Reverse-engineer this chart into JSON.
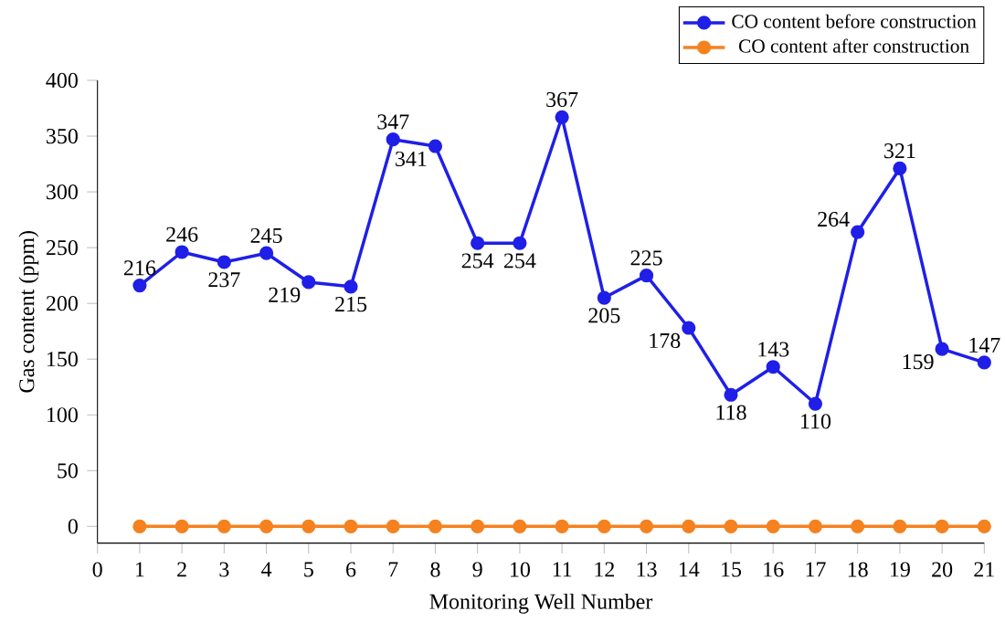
{
  "chart_data": {
    "type": "line",
    "xlabel": "Monitoring Well Number",
    "ylabel": "Gas content (ppm)",
    "x": [
      1,
      2,
      3,
      4,
      5,
      6,
      7,
      8,
      9,
      10,
      11,
      12,
      13,
      14,
      15,
      16,
      17,
      18,
      19,
      20,
      21
    ],
    "series": [
      {
        "name": "CO content before construction",
        "color": "#1f1fe8",
        "values": [
          216,
          246,
          237,
          245,
          219,
          215,
          347,
          341,
          254,
          254,
          367,
          205,
          225,
          178,
          118,
          143,
          110,
          264,
          321,
          159,
          147
        ],
        "value_labels": [
          "216",
          "246",
          "237",
          "245",
          "219",
          "215",
          "347",
          "341",
          "254",
          "254",
          "367",
          "205",
          "225",
          "178",
          "118",
          "143",
          "110",
          "264",
          "321",
          "159",
          "147"
        ]
      },
      {
        "name": "CO content after construction",
        "color": "#f5821f",
        "values": [
          0,
          0,
          0,
          0,
          0,
          0,
          0,
          0,
          0,
          0,
          0,
          0,
          0,
          0,
          0,
          0,
          0,
          0,
          0,
          0,
          0
        ]
      }
    ],
    "xlim": [
      0,
      21
    ],
    "xticks": [
      0,
      1,
      2,
      3,
      4,
      5,
      6,
      7,
      8,
      9,
      10,
      11,
      12,
      13,
      14,
      15,
      16,
      17,
      18,
      19,
      20,
      21
    ],
    "ylim": [
      -15,
      400
    ],
    "yticks": [
      0,
      50,
      100,
      150,
      200,
      250,
      300,
      350,
      400
    ],
    "legend": "top right",
    "marker": "circle",
    "line_style": "solid",
    "grid": false
  }
}
